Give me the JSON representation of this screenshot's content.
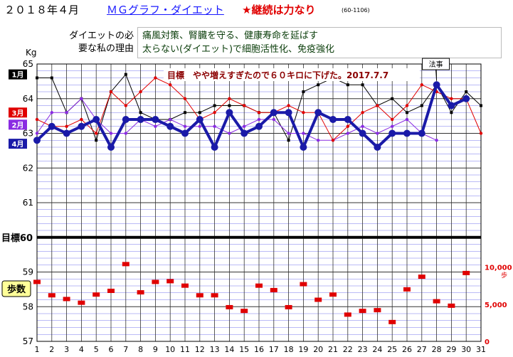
{
  "header": {
    "title": "２０１８年４月",
    "link": "ＭＧグラフ・ダイエット",
    "motto": "★継続は力なり",
    "code": "(60-1106)"
  },
  "reason": {
    "label_line1": "ダイエットの必",
    "label_line2": "要な私の理由",
    "lines": [
      "痛風対策、腎臓を守る、健康寿命を延ばす",
      "太らない(ダイエット)で細胞活性化、免疫強化"
    ]
  },
  "colors": {
    "grid": "#7777ee",
    "grid_major": "#333333",
    "april": "#1a1aa8",
    "march": "#e00000",
    "february": "#8a2be2",
    "january": "#000000",
    "steps": "#e00000",
    "goal_line": "#000000",
    "steps_bg": "#ffff99"
  },
  "chart_data": {
    "type": "line",
    "x": [
      1,
      2,
      3,
      4,
      5,
      6,
      7,
      8,
      9,
      10,
      11,
      12,
      13,
      14,
      15,
      16,
      17,
      18,
      19,
      20,
      21,
      22,
      23,
      24,
      25,
      26,
      27,
      28,
      29,
      30,
      31
    ],
    "ylim": [
      57,
      65
    ],
    "y_unit": "Kg",
    "y_ticks": [
      57,
      58,
      59,
      60,
      61,
      62,
      63,
      64,
      65
    ],
    "goal_value": 60,
    "goal_axis_label": "目標",
    "annotation": "目標　やや増えすぎたので６０キロに下げた。2017.7.7",
    "event_label": "法事",
    "event_day": 28,
    "series": [
      {
        "name": "4月",
        "key": "april",
        "values": [
          62.8,
          63.2,
          63.0,
          63.2,
          63.4,
          62.6,
          63.4,
          63.4,
          63.4,
          63.2,
          63.0,
          63.4,
          62.6,
          63.6,
          63.0,
          63.2,
          63.6,
          63.6,
          62.6,
          63.6,
          63.4,
          63.4,
          63.0,
          62.6,
          63.0,
          63.0,
          63.0,
          64.4,
          63.8,
          64.0,
          null
        ]
      },
      {
        "name": "3月",
        "key": "march",
        "values": [
          63.4,
          63.2,
          63.2,
          63.4,
          63.0,
          64.2,
          63.8,
          64.2,
          64.6,
          64.4,
          64.0,
          63.4,
          63.6,
          64.0,
          63.8,
          63.6,
          63.6,
          63.8,
          63.6,
          63.6,
          62.8,
          63.2,
          63.6,
          63.8,
          63.4,
          63.8,
          64.4,
          64.2,
          64.0,
          64.0,
          63.0
        ]
      },
      {
        "name": "2月",
        "key": "february",
        "values": [
          63.0,
          63.6,
          63.6,
          64.0,
          63.4,
          63.0,
          63.0,
          63.4,
          63.2,
          63.4,
          63.2,
          63.2,
          63.2,
          63.0,
          63.2,
          63.4,
          63.4,
          63.0,
          63.0,
          62.8,
          62.8,
          63.0,
          63.2,
          63.0,
          63.2,
          63.4,
          63.0,
          62.8,
          null,
          null,
          null
        ]
      },
      {
        "name": "1月",
        "key": "january",
        "values": [
          64.6,
          64.6,
          63.6,
          64.0,
          62.8,
          64.2,
          64.7,
          63.6,
          63.4,
          63.4,
          63.6,
          63.6,
          63.8,
          63.8,
          63.8,
          63.6,
          63.6,
          62.8,
          64.2,
          64.4,
          64.6,
          64.4,
          64.4,
          63.8,
          64.0,
          63.6,
          63.8,
          64.4,
          63.6,
          64.2,
          63.8
        ]
      }
    ],
    "steps": {
      "name": "歩数",
      "unit": "歩",
      "axis_ticks": [
        0,
        5000,
        10000
      ],
      "axis_labels": [
        "0",
        "5,000",
        "10,000"
      ],
      "axis_max": 14000,
      "values": [
        8000,
        6200,
        5700,
        5200,
        6300,
        6800,
        10400,
        6600,
        8000,
        8100,
        7500,
        6200,
        6200,
        4600,
        4100,
        7500,
        6900,
        4600,
        7700,
        5600,
        6300,
        3600,
        4100,
        4200,
        2600,
        7000,
        8700,
        5400,
        4800,
        9200,
        null
      ]
    }
  }
}
